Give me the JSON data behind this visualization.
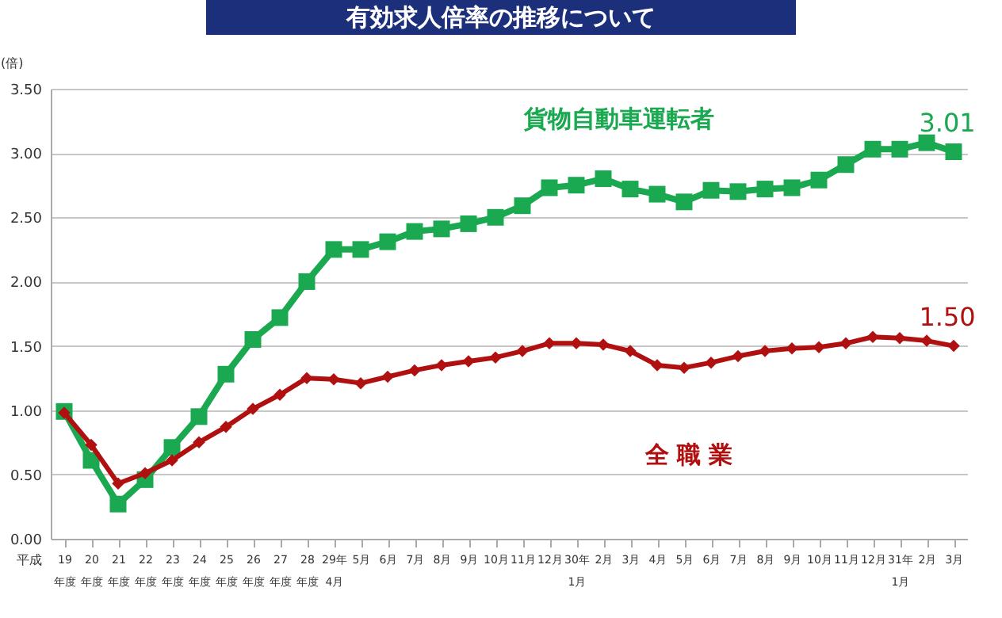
{
  "chart_data": {
    "type": "line",
    "title": "有効求人倍率の推移について",
    "ylabel": "(倍)",
    "categories": [
      "19\n年度",
      "20\n年度",
      "21\n年度",
      "22\n年度",
      "23\n年度",
      "24\n年度",
      "25\n年度",
      "26\n年度",
      "27\n年度",
      "28\n年度",
      "29年\n4月",
      "5月",
      "6月",
      "7月",
      "8月",
      "9月",
      "10月",
      "11月",
      "12月",
      "30年\n1月",
      "2月",
      "3月",
      "4月",
      "5月",
      "6月",
      "7月",
      "8月",
      "9月",
      "10月",
      "11月",
      "12月",
      "31年\n1月",
      "2月",
      "3月"
    ],
    "series": [
      {
        "name": "貨物自動車運転者",
        "color": "#1aa850",
        "marker": "square",
        "values": [
          0.99,
          0.61,
          0.27,
          0.46,
          0.71,
          0.95,
          1.28,
          1.55,
          1.72,
          2.0,
          2.25,
          2.25,
          2.31,
          2.39,
          2.41,
          2.45,
          2.5,
          2.59,
          2.73,
          2.75,
          2.8,
          2.72,
          2.68,
          2.62,
          2.71,
          2.7,
          2.72,
          2.73,
          2.79,
          2.91,
          3.03,
          3.03,
          3.08,
          3.01
        ],
        "value_labels": [
          null,
          null,
          null,
          null,
          null,
          null,
          null,
          null,
          null,
          null,
          null,
          null,
          null,
          null,
          null,
          null,
          null,
          null,
          null,
          null,
          null,
          null,
          null,
          null,
          null,
          null,
          null,
          null,
          null,
          null,
          null,
          null,
          null,
          "3.01"
        ]
      },
      {
        "name": "全 職 業",
        "color": "#b01010",
        "marker": "diamond",
        "values": [
          0.98,
          0.73,
          0.43,
          0.51,
          0.61,
          0.75,
          0.87,
          1.01,
          1.12,
          1.25,
          1.24,
          1.21,
          1.26,
          1.31,
          1.35,
          1.38,
          1.41,
          1.46,
          1.52,
          1.52,
          1.51,
          1.46,
          1.35,
          1.33,
          1.37,
          1.42,
          1.46,
          1.48,
          1.49,
          1.52,
          1.57,
          1.56,
          1.54,
          1.5
        ],
        "value_labels": [
          null,
          null,
          null,
          null,
          null,
          null,
          null,
          null,
          null,
          null,
          null,
          null,
          null,
          null,
          null,
          null,
          null,
          null,
          null,
          null,
          null,
          null,
          null,
          null,
          null,
          null,
          null,
          null,
          null,
          null,
          null,
          null,
          null,
          "1.50"
        ]
      }
    ],
    "ylim": [
      0,
      3.5
    ],
    "yticks": [
      {
        "value": 0,
        "label": "0.00"
      },
      {
        "value": 0.5,
        "label": "0.50"
      },
      {
        "value": 1,
        "label": "1.00"
      },
      {
        "value": 1.5,
        "label": "1.50"
      },
      {
        "value": 2,
        "label": "2.00"
      },
      {
        "value": 2.5,
        "label": "2.50"
      },
      {
        "value": 3,
        "label": "3.00"
      },
      {
        "value": 3.5,
        "label": "3.50"
      }
    ],
    "grid": "y",
    "line_style": "solid",
    "annotations": [
      "平成"
    ]
  }
}
